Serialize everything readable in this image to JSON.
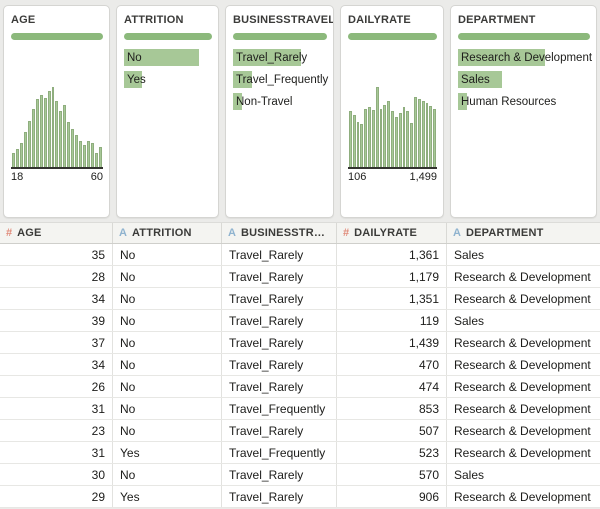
{
  "colors": {
    "pill_green": "#8cb97c",
    "bar_green": "#a7c897",
    "bar_border": "#8fae7e",
    "number_icon": "#e08a79",
    "string_icon": "#8fb3cf"
  },
  "profile_cards": [
    {
      "title": "AGE",
      "type": "histogram",
      "min_label": "18",
      "max_label": "60",
      "bars": [
        18,
        22,
        30,
        44,
        58,
        72,
        85,
        90,
        86,
        95,
        100,
        82,
        70,
        78,
        56,
        48,
        40,
        32,
        28,
        33,
        30,
        18,
        25
      ]
    },
    {
      "title": "ATTRITION",
      "type": "categories",
      "items": [
        {
          "label": "No",
          "pct": 85
        },
        {
          "label": "Yes",
          "pct": 21
        }
      ]
    },
    {
      "title": "BUSINESSTRAVEL",
      "type": "categories",
      "items": [
        {
          "label": "Travel_Rarely",
          "pct": 72
        },
        {
          "label": "Travel_Frequently",
          "pct": 20
        },
        {
          "label": "Non-Travel",
          "pct": 10
        }
      ]
    },
    {
      "title": "DAILYRATE",
      "type": "histogram",
      "min_label": "106",
      "max_label": "1,499",
      "bars": [
        70,
        65,
        56,
        54,
        72,
        75,
        71,
        100,
        73,
        77,
        82,
        70,
        62,
        68,
        75,
        70,
        55,
        88,
        85,
        82,
        80,
        76,
        73
      ]
    },
    {
      "title": "DEPARTMENT",
      "type": "categories",
      "items": [
        {
          "label": "Research & Development",
          "pct": 66
        },
        {
          "label": "Sales",
          "pct": 33
        },
        {
          "label": "Human Resources",
          "pct": 7
        }
      ]
    }
  ],
  "grid": {
    "columns": [
      {
        "label": "AGE",
        "glyph": "#",
        "kind": "number"
      },
      {
        "label": "ATTRITION",
        "glyph": "A",
        "kind": "string"
      },
      {
        "label": "BUSINESSTRAVEL",
        "glyph": "A",
        "kind": "string"
      },
      {
        "label": "DAILYRATE",
        "glyph": "#",
        "kind": "number"
      },
      {
        "label": "DEPARTMENT",
        "glyph": "A",
        "kind": "string"
      }
    ],
    "rows": [
      [
        "35",
        "No",
        "Travel_Rarely",
        "1,361",
        "Sales"
      ],
      [
        "28",
        "No",
        "Travel_Rarely",
        "1,179",
        "Research & Development"
      ],
      [
        "34",
        "No",
        "Travel_Rarely",
        "1,351",
        "Research & Development"
      ],
      [
        "39",
        "No",
        "Travel_Rarely",
        "119",
        "Sales"
      ],
      [
        "37",
        "No",
        "Travel_Rarely",
        "1,439",
        "Research & Development"
      ],
      [
        "34",
        "No",
        "Travel_Rarely",
        "470",
        "Research & Development"
      ],
      [
        "26",
        "No",
        "Travel_Rarely",
        "474",
        "Research & Development"
      ],
      [
        "31",
        "No",
        "Travel_Frequently",
        "853",
        "Research & Development"
      ],
      [
        "23",
        "No",
        "Travel_Rarely",
        "507",
        "Research & Development"
      ],
      [
        "31",
        "Yes",
        "Travel_Frequently",
        "523",
        "Research & Development"
      ],
      [
        "30",
        "No",
        "Travel_Rarely",
        "570",
        "Sales"
      ],
      [
        "29",
        "Yes",
        "Travel_Rarely",
        "906",
        "Research & Development"
      ]
    ]
  },
  "chart_data": [
    {
      "type": "bar",
      "title": "AGE",
      "xlabel_min": "18",
      "xlabel_max": "60",
      "values_relative_pct": [
        18,
        22,
        30,
        44,
        58,
        72,
        85,
        90,
        86,
        95,
        100,
        82,
        70,
        78,
        56,
        48,
        40,
        32,
        28,
        33,
        30,
        18,
        25
      ]
    },
    {
      "type": "bar",
      "title": "ATTRITION",
      "categories": [
        "No",
        "Yes"
      ],
      "values_relative_pct": [
        85,
        21
      ]
    },
    {
      "type": "bar",
      "title": "BUSINESSTRAVEL",
      "categories": [
        "Travel_Rarely",
        "Travel_Frequently",
        "Non-Travel"
      ],
      "values_relative_pct": [
        72,
        20,
        10
      ]
    },
    {
      "type": "bar",
      "title": "DAILYRATE",
      "xlabel_min": "106",
      "xlabel_max": "1,499",
      "values_relative_pct": [
        70,
        65,
        56,
        54,
        72,
        75,
        71,
        100,
        73,
        77,
        82,
        70,
        62,
        68,
        75,
        70,
        55,
        88,
        85,
        82,
        80,
        76,
        73
      ]
    },
    {
      "type": "bar",
      "title": "DEPARTMENT",
      "categories": [
        "Research & Development",
        "Sales",
        "Human Resources"
      ],
      "values_relative_pct": [
        66,
        33,
        7
      ]
    }
  ]
}
